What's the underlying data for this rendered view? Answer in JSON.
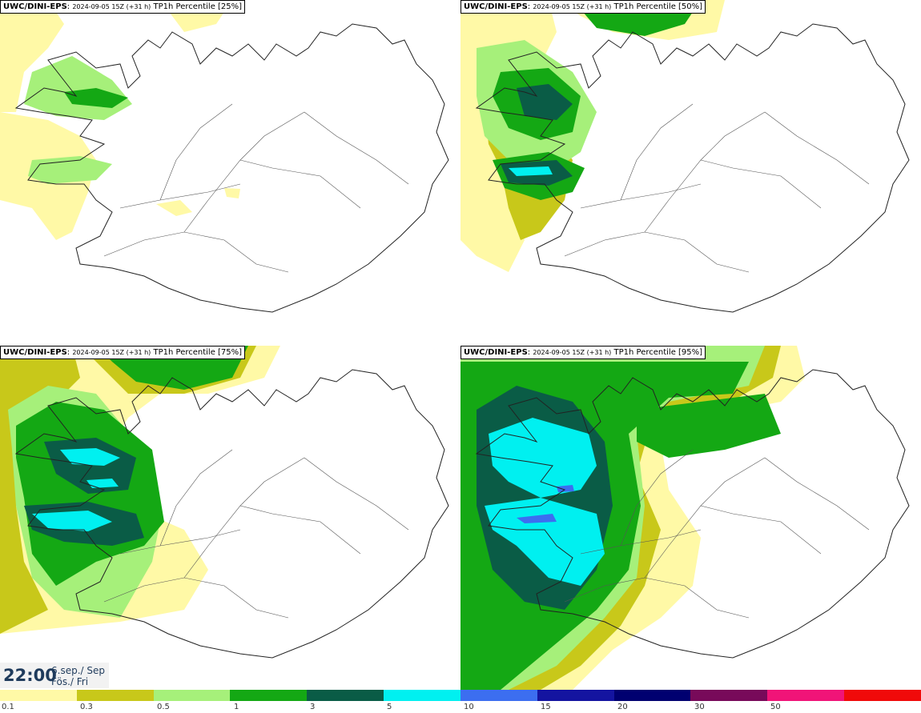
{
  "panels": [
    {
      "model": "UWC/DINI-EPS",
      "init": "2024-09-05 15Z (+31 h)",
      "title": "TP1h Percentile [25%]",
      "percentile": 25
    },
    {
      "model": "UWC/DINI-EPS",
      "init": "2024-09-05 15Z (+31 h)",
      "title": "TP1h Percentile [50%]",
      "percentile": 50
    },
    {
      "model": "UWC/DINI-EPS",
      "init": "2024-09-05 15Z (+31 h)",
      "title": "TP1h Percentile [75%]",
      "percentile": 75
    },
    {
      "model": "UWC/DINI-EPS",
      "init": "2024-09-05 15Z (+31 h)",
      "title": "TP1h Percentile [95%]",
      "percentile": 95
    }
  ],
  "valid": {
    "time": "22:00",
    "date": "6.sep./ Sep",
    "day": "Fös./ Fri"
  },
  "legend": {
    "colors": [
      "#fff9a6",
      "#c8c81a",
      "#a6f07a",
      "#14a814",
      "#0a5c46",
      "#00f0f0",
      "#3c6ef0",
      "#1414a0",
      "#000070",
      "#780a5a",
      "#f01478",
      "#f00a0a"
    ],
    "ticks": [
      "0.1",
      "0.3",
      "0.5",
      "1",
      "3",
      "5",
      "10",
      "15",
      "20",
      "30",
      "50"
    ]
  }
}
